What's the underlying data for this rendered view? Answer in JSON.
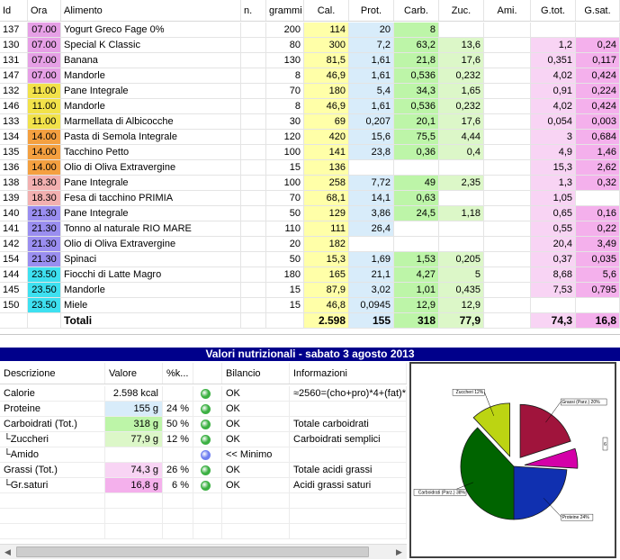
{
  "food_table": {
    "headers": [
      "Id",
      "Ora",
      "Alimento",
      "n.",
      "grammi",
      "Cal.",
      "Prot.",
      "Carb.",
      "Zuc.",
      "Ami.",
      "G.tot.",
      "G.sat."
    ],
    "rows": [
      {
        "id": "137",
        "ora": "07.00",
        "alimento": "Yogurt Greco Fage 0%",
        "n": "",
        "grammi": "200",
        "cal": "114",
        "prot": "20",
        "carb": "8",
        "zuc": "",
        "ami": "",
        "gtot": "",
        "gsat": ""
      },
      {
        "id": "130",
        "ora": "07.00",
        "alimento": "Special K Classic",
        "n": "",
        "grammi": "80",
        "cal": "300",
        "prot": "7,2",
        "carb": "63,2",
        "zuc": "13,6",
        "ami": "",
        "gtot": "1,2",
        "gsat": "0,24"
      },
      {
        "id": "131",
        "ora": "07.00",
        "alimento": "Banana",
        "n": "",
        "grammi": "130",
        "cal": "81,5",
        "prot": "1,61",
        "carb": "21,8",
        "zuc": "17,6",
        "ami": "",
        "gtot": "0,351",
        "gsat": "0,117"
      },
      {
        "id": "147",
        "ora": "07.00",
        "alimento": "Mandorle",
        "n": "",
        "grammi": "8",
        "cal": "46,9",
        "prot": "1,61",
        "carb": "0,536",
        "zuc": "0,232",
        "ami": "",
        "gtot": "4,02",
        "gsat": "0,424"
      },
      {
        "id": "132",
        "ora": "11.00",
        "alimento": "Pane Integrale",
        "n": "",
        "grammi": "70",
        "cal": "180",
        "prot": "5,4",
        "carb": "34,3",
        "zuc": "1,65",
        "ami": "",
        "gtot": "0,91",
        "gsat": "0,224"
      },
      {
        "id": "146",
        "ora": "11.00",
        "alimento": "Mandorle",
        "n": "",
        "grammi": "8",
        "cal": "46,9",
        "prot": "1,61",
        "carb": "0,536",
        "zuc": "0,232",
        "ami": "",
        "gtot": "4,02",
        "gsat": "0,424"
      },
      {
        "id": "133",
        "ora": "11.00",
        "alimento": "Marmellata di Albicocche",
        "n": "",
        "grammi": "30",
        "cal": "69",
        "prot": "0,207",
        "carb": "20,1",
        "zuc": "17,6",
        "ami": "",
        "gtot": "0,054",
        "gsat": "0,003"
      },
      {
        "id": "134",
        "ora": "14.00",
        "alimento": "Pasta di Semola Integrale",
        "n": "",
        "grammi": "120",
        "cal": "420",
        "prot": "15,6",
        "carb": "75,5",
        "zuc": "4,44",
        "ami": "",
        "gtot": "3",
        "gsat": "0,684"
      },
      {
        "id": "135",
        "ora": "14.00",
        "alimento": "Tacchino Petto",
        "n": "",
        "grammi": "100",
        "cal": "141",
        "prot": "23,8",
        "carb": "0,36",
        "zuc": "0,4",
        "ami": "",
        "gtot": "4,9",
        "gsat": "1,46"
      },
      {
        "id": "136",
        "ora": "14.00",
        "alimento": "Olio di Oliva Extravergine",
        "n": "",
        "grammi": "15",
        "cal": "136",
        "prot": "",
        "carb": "",
        "zuc": "",
        "ami": "",
        "gtot": "15,3",
        "gsat": "2,62"
      },
      {
        "id": "138",
        "ora": "18.30",
        "alimento": "Pane Integrale",
        "n": "",
        "grammi": "100",
        "cal": "258",
        "prot": "7,72",
        "carb": "49",
        "zuc": "2,35",
        "ami": "",
        "gtot": "1,3",
        "gsat": "0,32"
      },
      {
        "id": "139",
        "ora": "18.30",
        "alimento": "Fesa di tacchino PRIMIA",
        "n": "",
        "grammi": "70",
        "cal": "68,1",
        "prot": "14,1",
        "carb": "0,63",
        "zuc": "",
        "ami": "",
        "gtot": "1,05",
        "gsat": ""
      },
      {
        "id": "140",
        "ora": "21.30",
        "alimento": "Pane Integrale",
        "n": "",
        "grammi": "50",
        "cal": "129",
        "prot": "3,86",
        "carb": "24,5",
        "zuc": "1,18",
        "ami": "",
        "gtot": "0,65",
        "gsat": "0,16"
      },
      {
        "id": "141",
        "ora": "21.30",
        "alimento": "Tonno al naturale RIO MARE",
        "n": "",
        "grammi": "110",
        "cal": "111",
        "prot": "26,4",
        "carb": "",
        "zuc": "",
        "ami": "",
        "gtot": "0,55",
        "gsat": "0,22"
      },
      {
        "id": "142",
        "ora": "21.30",
        "alimento": "Olio di Oliva Extravergine",
        "n": "",
        "grammi": "20",
        "cal": "182",
        "prot": "",
        "carb": "",
        "zuc": "",
        "ami": "",
        "gtot": "20,4",
        "gsat": "3,49"
      },
      {
        "id": "154",
        "ora": "21.30",
        "alimento": "Spinaci",
        "n": "",
        "grammi": "50",
        "cal": "15,3",
        "prot": "1,69",
        "carb": "1,53",
        "zuc": "0,205",
        "ami": "",
        "gtot": "0,37",
        "gsat": "0,035"
      },
      {
        "id": "144",
        "ora": "23.50",
        "alimento": "Fiocchi di Latte Magro",
        "n": "",
        "grammi": "180",
        "cal": "165",
        "prot": "21,1",
        "carb": "4,27",
        "zuc": "5",
        "ami": "",
        "gtot": "8,68",
        "gsat": "5,6"
      },
      {
        "id": "145",
        "ora": "23.50",
        "alimento": "Mandorle",
        "n": "",
        "grammi": "15",
        "cal": "87,9",
        "prot": "3,02",
        "carb": "1,01",
        "zuc": "0,435",
        "ami": "",
        "gtot": "7,53",
        "gsat": "0,795"
      },
      {
        "id": "150",
        "ora": "23.50",
        "alimento": "Miele",
        "n": "",
        "grammi": "15",
        "cal": "46,8",
        "prot": "0,0945",
        "carb": "12,9",
        "zuc": "12,9",
        "ami": "",
        "gtot": "",
        "gsat": ""
      }
    ],
    "totals": {
      "label": "Totali",
      "cal": "2.598",
      "prot": "155",
      "carb": "318",
      "zuc": "77,9",
      "gtot": "74,3",
      "gsat": "16,8"
    }
  },
  "ora_colors": {
    "07.00": "#e6a0e6",
    "11.00": "#f2e24a",
    "14.00": "#f4a040",
    "18.30": "#f2b0b0",
    "21.30": "#9a8ef0",
    "23.50": "#3ee0f0"
  },
  "column_colors": {
    "cal": "#ffffa8",
    "prot": "#d8ecfa",
    "carb": "#bdf5a8",
    "zuc": "#dcf7c8",
    "gtot": "#f8d4f4",
    "gsat": "#f4b0ec"
  },
  "nutri": {
    "title": "Valori nutrizionali - sabato 3 agosto 2013",
    "headers": [
      "Descrizione",
      "Valore",
      "%k...",
      "",
      "Bilancio",
      "Informazioni"
    ],
    "rows": [
      {
        "desc": "Calorie",
        "valore": "2.598 kcal",
        "pct": "",
        "status": "green",
        "bilancio": "OK",
        "info": "≈2560=(cho+pro)*4+(fat)*"
      },
      {
        "desc": "Proteine",
        "valore": "155 g",
        "pct": "24 %",
        "status": "green",
        "bilancio": "OK",
        "info": ""
      },
      {
        "desc": "Carboidrati (Tot.)",
        "valore": "318 g",
        "pct": "50 %",
        "status": "green",
        "bilancio": "OK",
        "info": "Totale carboidrati"
      },
      {
        "desc": "└Zuccheri",
        "valore": "77,9 g",
        "pct": "12 %",
        "status": "green",
        "bilancio": "OK",
        "info": "Carboidrati semplici"
      },
      {
        "desc": "└Amido",
        "valore": "",
        "pct": "",
        "status": "blue",
        "bilancio": "<< Minimo",
        "info": ""
      },
      {
        "desc": "Grassi (Tot.)",
        "valore": "74,3 g",
        "pct": "26 %",
        "status": "green",
        "bilancio": "OK",
        "info": "Totale acidi grassi"
      },
      {
        "desc": "└Gr.saturi",
        "valore": "16,8 g",
        "pct": "6 %",
        "status": "green",
        "bilancio": "OK",
        "info": "Acidi grassi saturi"
      }
    ],
    "value_colors": [
      "",
      "#d8ecfa",
      "#bdf5a8",
      "#dcf7c8",
      "",
      "#f8d4f4",
      "#f4b0ec"
    ],
    "status_colors": {
      "green": "#3cb043",
      "blue": "#6f7ff0"
    }
  },
  "chart_data": {
    "type": "pie",
    "title": "",
    "slices": [
      {
        "label": "Grassi (Parz.) 20%",
        "value": 20,
        "color": "#a0143c",
        "exploded": true
      },
      {
        "label": "",
        "value": 6,
        "color": "#d400a8",
        "exploded": true
      },
      {
        "label": "Proteine 24%",
        "value": 24,
        "color": "#1030b0",
        "exploded": false
      },
      {
        "label": "Carboidrati (Parz.) 38%",
        "value": 38,
        "color": "#006400",
        "exploded": false
      },
      {
        "label": "Zuccheri 12%",
        "value": 12,
        "color": "#bcd412",
        "exploded": true
      }
    ],
    "outside_mark": "6"
  },
  "scrollbar": {
    "left_arrow": "◀",
    "right_arrow": "▶"
  }
}
